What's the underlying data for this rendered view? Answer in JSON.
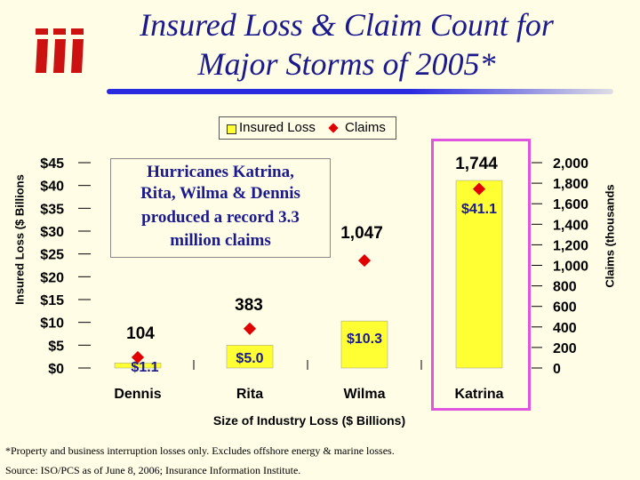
{
  "slide": {
    "title_line1": "Insured Loss & Claim Count for",
    "title_line2": "Major Storms of 2005*",
    "footnote": "*Property and business interruption losses only. Excludes offshore energy & marine losses.",
    "source": "Source: ISO/PCS as of June 8, 2006; Insurance Information Institute.",
    "annotation": [
      "Hurricanes Katrina,",
      "Rita, Wilma & Dennis",
      "produced a record 3.3",
      "million claims"
    ]
  },
  "colors": {
    "bar": "#ffff33",
    "marker": "#e00000",
    "title": "#1a1a8c",
    "highlight": "#e055e0"
  },
  "chart_data": {
    "type": "bar",
    "categories": [
      "Dennis",
      "Rita",
      "Wilma",
      "Katrina"
    ],
    "series": [
      {
        "name": "Insured Loss",
        "type": "bar",
        "axis": "left",
        "values": [
          1.1,
          5.0,
          10.3,
          41.1
        ],
        "labels": [
          "$1.1",
          "$5.0",
          "$10.3",
          "$41.1"
        ]
      },
      {
        "name": "Claims",
        "type": "scatter",
        "axis": "right",
        "values": [
          104,
          383,
          1047,
          1744
        ],
        "labels": [
          "104",
          "383",
          "1,047",
          "1,744"
        ]
      }
    ],
    "xlabel": "Size of Industry Loss ($ Billions)",
    "ylabel_left": "Insured Loss ($ Billions",
    "ylabel_right": "Claims (thousands",
    "ylim_left": [
      0,
      45
    ],
    "ylim_right": [
      0,
      2000
    ],
    "yticks_left": [
      "$0",
      "$5",
      "$10",
      "$15",
      "$20",
      "$25",
      "$30",
      "$35",
      "$40",
      "$45"
    ],
    "yticks_right": [
      "0",
      "200",
      "400",
      "600",
      "800",
      "1,000",
      "1,200",
      "1,400",
      "1,600",
      "1,800",
      "2,000"
    ],
    "legend": [
      "Insured Loss",
      "Claims"
    ],
    "legend_position": "top-center",
    "highlighted_category": "Katrina",
    "grid": false
  }
}
